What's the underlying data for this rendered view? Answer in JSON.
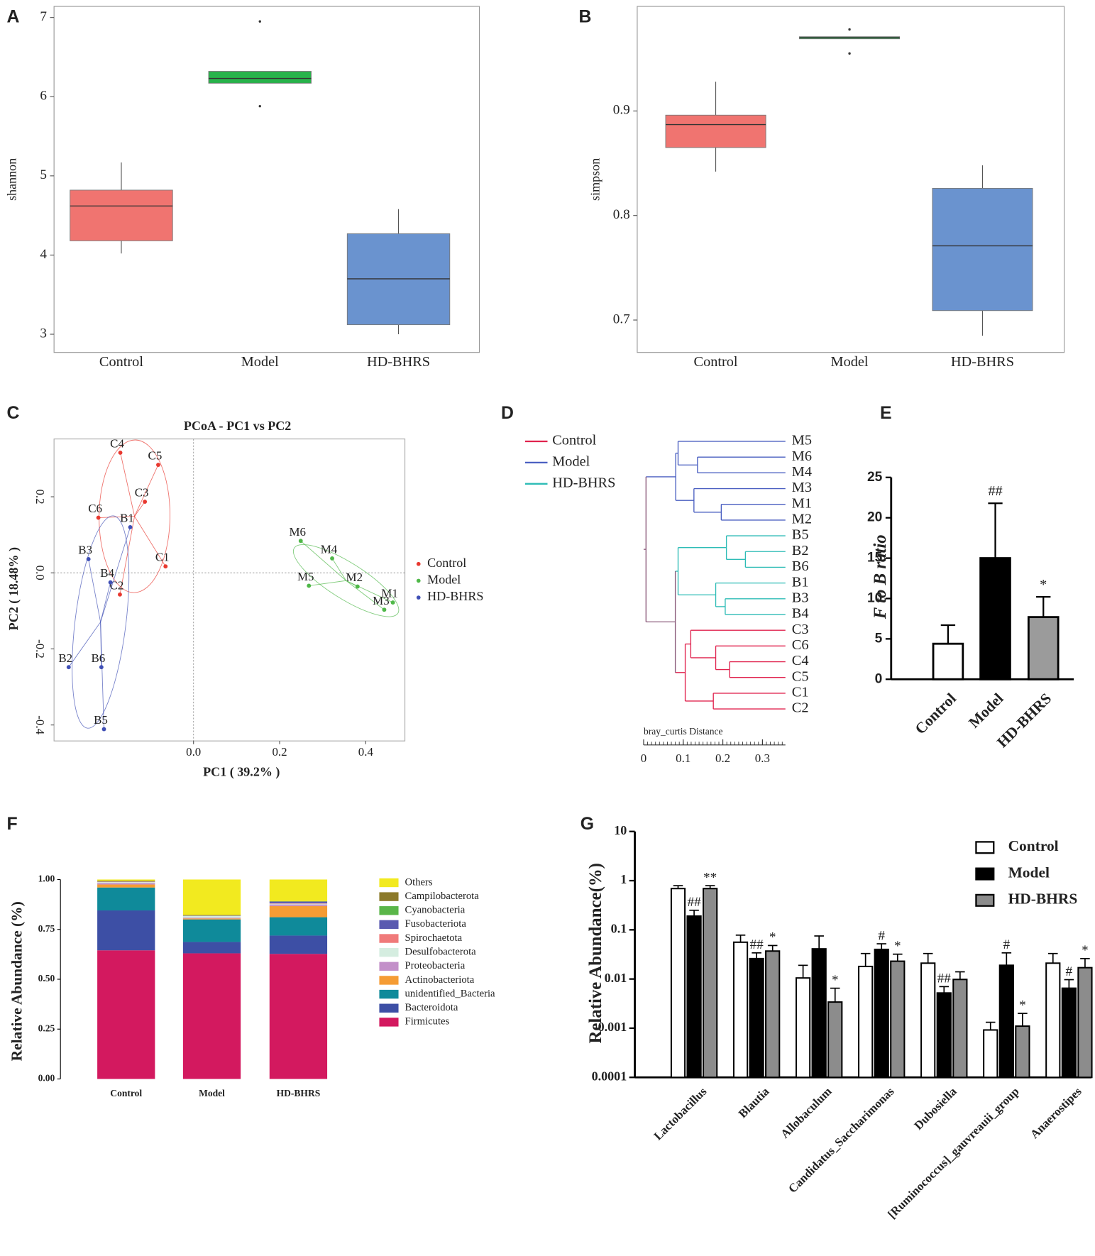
{
  "chart_data": [
    {
      "panel": "A",
      "type": "box",
      "ylabel": "shannon",
      "categories": [
        "Control",
        "Model",
        "HD-BHRS"
      ],
      "colors": [
        "#f07470",
        "#27b34a",
        "#6a93cf"
      ],
      "boxes": [
        {
          "min": 4.02,
          "q1": 4.18,
          "median": 4.62,
          "q3": 4.82,
          "max": 5.17
        },
        {
          "min": 6.17,
          "q1": 6.17,
          "median": 6.23,
          "q3": 6.32,
          "max": 6.32,
          "outliers": [
            6.95,
            5.88
          ]
        },
        {
          "min": 3.0,
          "q1": 3.12,
          "median": 3.7,
          "q3": 4.27,
          "max": 4.58
        }
      ],
      "ylim": [
        2.77,
        7.14
      ],
      "yticks": [
        3,
        4,
        5,
        6,
        7
      ]
    },
    {
      "panel": "B",
      "type": "box",
      "ylabel": "simpson",
      "categories": [
        "Control",
        "Model",
        "HD-BHRS"
      ],
      "colors": [
        "#f07470",
        "#27b34a",
        "#6a93cf"
      ],
      "boxes": [
        {
          "min": 0.842,
          "q1": 0.865,
          "median": 0.887,
          "q3": 0.896,
          "max": 0.928
        },
        {
          "min": 0.969,
          "q1": 0.969,
          "median": 0.97,
          "q3": 0.971,
          "max": 0.971,
          "outliers": [
            0.978,
            0.955
          ]
        },
        {
          "min": 0.685,
          "q1": 0.709,
          "median": 0.771,
          "q3": 0.826,
          "max": 0.848
        }
      ],
      "ylim": [
        0.669,
        1.0
      ],
      "yticks": [
        0.7,
        0.8,
        0.9
      ]
    },
    {
      "panel": "C",
      "type": "scatter",
      "title": "PCoA - PC1 vs PC2",
      "xlabel": "PC1 ( 39.2% )",
      "ylabel": "PC2 ( 18.48% )",
      "xlim": [
        -0.324,
        0.491
      ],
      "ylim": [
        -0.442,
        0.352
      ],
      "xticks": [
        {
          "value": 0,
          "label": "0.0"
        },
        0.2,
        0.4
      ],
      "yticks": [
        -0.4,
        -0.2,
        {
          "value": 0,
          "label": "0.0"
        },
        0.2
      ],
      "series": [
        {
          "name": "Control",
          "color": "#e8382f",
          "labels": [
            "C4",
            "C5",
            "C3",
            "C6",
            "C1",
            "C2"
          ],
          "x": [
            -0.17,
            -0.082,
            -0.113,
            -0.221,
            -0.065,
            -0.171
          ],
          "y": [
            0.316,
            0.284,
            0.187,
            0.145,
            0.017,
            -0.057
          ]
        },
        {
          "name": "Model",
          "color": "#4fb848",
          "labels": [
            "M6",
            "M4",
            "M5",
            "M2",
            "M1",
            "M3"
          ],
          "x": [
            0.249,
            0.322,
            0.268,
            0.381,
            0.463,
            0.443
          ],
          "y": [
            0.084,
            0.038,
            -0.034,
            -0.036,
            -0.078,
            -0.097
          ]
        },
        {
          "name": "HD-BHRS",
          "color": "#3f4fb5",
          "labels": [
            "B1",
            "B3",
            "B4",
            "B2",
            "B6",
            "B5"
          ],
          "x": [
            -0.147,
            -0.244,
            -0.193,
            -0.29,
            -0.214,
            -0.208
          ],
          "y": [
            0.12,
            0.036,
            -0.025,
            -0.248,
            -0.248,
            -0.411
          ]
        }
      ]
    },
    {
      "panel": "D",
      "type": "dendrogram",
      "xlabel": "bray_curtis Distance",
      "xlim": [
        0,
        0.358
      ],
      "xticks": [
        0,
        0.1,
        0.2,
        0.3
      ],
      "legend": [
        {
          "name": "Control",
          "color": "#e0234e"
        },
        {
          "name": "Model",
          "color": "#4a5fc1"
        },
        {
          "name": "HD-BHRS",
          "color": "#2ebcb6"
        }
      ],
      "tree": {
        "height": 0.006,
        "children": [
          {
            "height": 0.081,
            "children": [
              {
                "height": 0.087,
                "children": [
                  {
                    "label": "M5",
                    "group": "Model"
                  },
                  {
                    "height": 0.136,
                    "children": [
                      {
                        "label": "M6",
                        "group": "Model"
                      },
                      {
                        "label": "M4",
                        "group": "Model"
                      }
                    ]
                  }
                ]
              },
              {
                "height": 0.127,
                "children": [
                  {
                    "label": "M3",
                    "group": "Model"
                  },
                  {
                    "height": 0.196,
                    "children": [
                      {
                        "label": "M1",
                        "group": "Model"
                      },
                      {
                        "label": "M2",
                        "group": "Model"
                      }
                    ]
                  }
                ]
              }
            ]
          },
          {
            "height": 0.08,
            "children": [
              {
                "height": 0.087,
                "children": [
                  {
                    "height": 0.209,
                    "children": [
                      {
                        "label": "B5",
                        "group": "HD-BHRS"
                      },
                      {
                        "height": 0.257,
                        "children": [
                          {
                            "label": "B2",
                            "group": "HD-BHRS"
                          },
                          {
                            "label": "B6",
                            "group": "HD-BHRS"
                          }
                        ]
                      }
                    ]
                  },
                  {
                    "height": 0.182,
                    "children": [
                      {
                        "label": "B1",
                        "group": "HD-BHRS"
                      },
                      {
                        "height": 0.206,
                        "children": [
                          {
                            "label": "B3",
                            "group": "HD-BHRS"
                          },
                          {
                            "label": "B4",
                            "group": "HD-BHRS"
                          }
                        ]
                      }
                    ]
                  }
                ]
              },
              {
                "height": 0.105,
                "children": [
                  {
                    "height": 0.119,
                    "children": [
                      {
                        "label": "C3",
                        "group": "Control"
                      },
                      {
                        "height": 0.182,
                        "children": [
                          {
                            "label": "C6",
                            "group": "Control"
                          },
                          {
                            "height": 0.217,
                            "children": [
                              {
                                "label": "C4",
                                "group": "Control"
                              },
                              {
                                "label": "C5",
                                "group": "Control"
                              }
                            ]
                          }
                        ]
                      }
                    ]
                  },
                  {
                    "height": 0.176,
                    "children": [
                      {
                        "label": "C1",
                        "group": "Control"
                      },
                      {
                        "label": "C2",
                        "group": "Control"
                      }
                    ]
                  }
                ]
              }
            ]
          }
        ]
      }
    },
    {
      "panel": "E",
      "type": "bar",
      "ylabel": "F to B ratio",
      "categories": [
        "Control",
        "Model",
        "HD-BHRS"
      ],
      "values": [
        4.4,
        15.0,
        7.7
      ],
      "errors": [
        2.3,
        6.8,
        2.5
      ],
      "colors": [
        "#ffffff",
        "#000000",
        "#9b9b9b"
      ],
      "annotations": [
        null,
        "##",
        "*"
      ],
      "ylim": [
        0,
        25
      ],
      "yticks": [
        0,
        5,
        10,
        15,
        20,
        25
      ]
    },
    {
      "panel": "F",
      "type": "stacked_bar",
      "ylabel": "Relative Abundance (%)",
      "categories": [
        "Control",
        "Model",
        "HD-BHRS"
      ],
      "ylim": [
        0,
        1
      ],
      "yticks": [
        {
          "value": 0,
          "label": "0.00"
        },
        0.25,
        {
          "value": 0.5,
          "label": "0.50"
        },
        0.75,
        {
          "value": 1,
          "label": "1.00"
        }
      ],
      "series": [
        {
          "name": "Others",
          "color": "#f2ea1f",
          "values": [
            0.006,
            0.178,
            0.108
          ]
        },
        {
          "name": "Campilobacterota",
          "color": "#8c7a2a",
          "values": [
            0.003,
            0.002,
            0.002
          ]
        },
        {
          "name": "Cyanobacteria",
          "color": "#5ab649",
          "values": [
            0.001,
            0.001,
            0.001
          ]
        },
        {
          "name": "Fusobacteriota",
          "color": "#5a5ab0",
          "values": [
            0.001,
            0.001,
            0.008
          ]
        },
        {
          "name": "Spirochaetota",
          "color": "#f07a7a",
          "values": [
            0.002,
            0.001,
            0.002
          ]
        },
        {
          "name": "Desulfobacterota",
          "color": "#d5ede0",
          "values": [
            0.004,
            0.008,
            0.004
          ]
        },
        {
          "name": "Proteobacteria",
          "color": "#c390c9",
          "values": [
            0.008,
            0.004,
            0.008
          ]
        },
        {
          "name": "Actinobacteriota",
          "color": "#f59c34",
          "values": [
            0.015,
            0.005,
            0.056
          ]
        },
        {
          "name": "unidentified_Bacteria",
          "color": "#0f8a9a",
          "values": [
            0.115,
            0.113,
            0.092
          ]
        },
        {
          "name": "Bacteroidota",
          "color": "#3d4fa5",
          "values": [
            0.2,
            0.057,
            0.092
          ]
        },
        {
          "name": "Firmicutes",
          "color": "#d3195f",
          "values": [
            0.645,
            0.63,
            0.627
          ]
        }
      ]
    },
    {
      "panel": "G",
      "type": "grouped_bar",
      "ylabel": "Relative Abundance(%)",
      "log": true,
      "categories": [
        "Lactobacillus",
        "Blautia",
        "Allobaculum",
        "Candidatus_Saccharimonas",
        "Dubosiella",
        "[Ruminococcus]_gauvreauii_group",
        "Anaerostipes"
      ],
      "ylim": [
        0.0001,
        10
      ],
      "yticks": [
        0.0001,
        0.001,
        0.01,
        0.1,
        1,
        10
      ],
      "series": [
        {
          "name": "Control",
          "color": "#ffffff",
          "values": [
            0.69,
            0.056,
            0.0105,
            0.018,
            0.021,
            0.00092,
            0.021
          ],
          "errors": [
            0.1,
            0.022,
            0.0085,
            0.015,
            0.012,
            0.0004,
            0.012
          ]
        },
        {
          "name": "Model",
          "color": "#000000",
          "values": [
            0.19,
            0.026,
            0.041,
            0.04,
            0.0052,
            0.019,
            0.0065
          ],
          "errors": [
            0.06,
            0.008,
            0.034,
            0.012,
            0.0018,
            0.015,
            0.0032
          ],
          "annotations": [
            "##",
            "##",
            null,
            "#",
            "##",
            "#",
            "#"
          ]
        },
        {
          "name": "HD-BHRS",
          "color": "#8c8c8c",
          "values": [
            0.69,
            0.037,
            0.0034,
            0.023,
            0.0098,
            0.0011,
            0.017
          ],
          "errors": [
            0.1,
            0.011,
            0.0031,
            0.009,
            0.0042,
            0.0009,
            0.009
          ],
          "annotations": [
            "**",
            "*",
            "*",
            "*",
            null,
            "*",
            "*"
          ]
        }
      ]
    }
  ]
}
